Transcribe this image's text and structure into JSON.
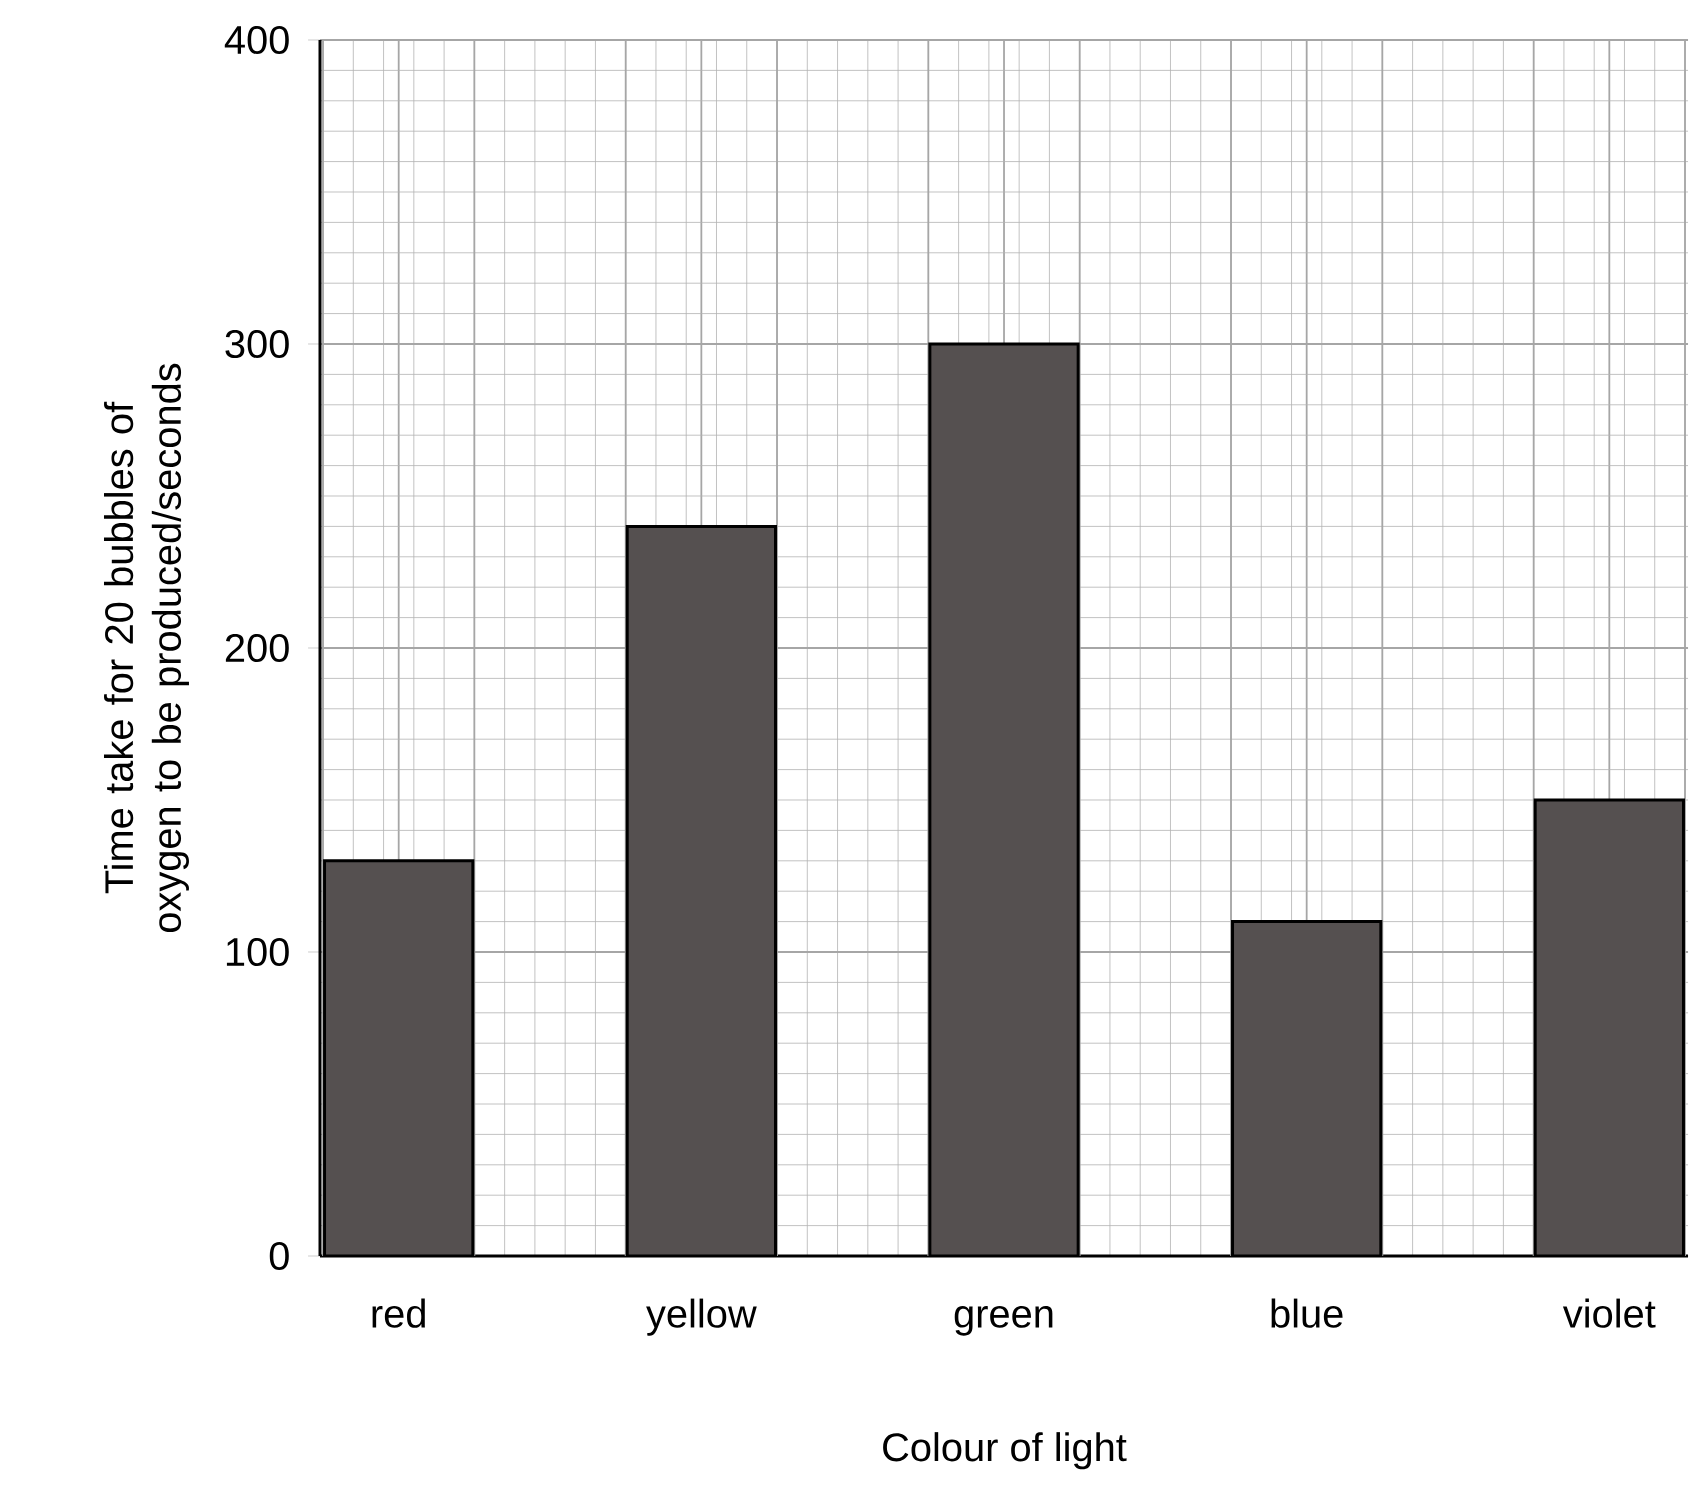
{
  "chart_data": {
    "type": "bar",
    "xlabel": "Colour of light",
    "ylabel": "Time take for 20 bubbles of oxygen to be produced/seconds",
    "categories": [
      "red",
      "yellow",
      "green",
      "blue",
      "violet"
    ],
    "values": [
      130,
      240,
      300,
      110,
      150
    ],
    "color": "#555050",
    "ylim": [
      0,
      400
    ],
    "yticks": [
      0,
      100,
      200,
      300,
      400
    ],
    "grid": true
  }
}
